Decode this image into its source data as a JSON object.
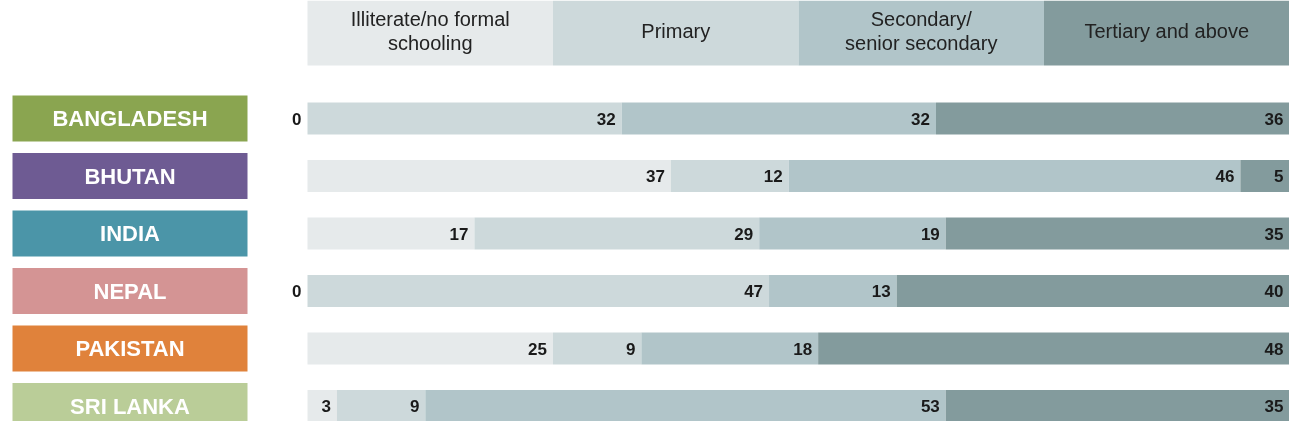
{
  "chart_data": {
    "type": "bar",
    "orientation": "horizontal",
    "stacked": true,
    "legend": "top",
    "grid": false,
    "tick_labels": false,
    "xlim": [
      0,
      100
    ],
    "categories": [
      "BANGLADESH",
      "BHUTAN",
      "INDIA",
      "NEPAL",
      "PAKISTAN",
      "SRI LANKA"
    ],
    "series": [
      {
        "name": "Illiterate/no formal\nschooling",
        "color": "#e6eaeb",
        "values": [
          0,
          37,
          17,
          0,
          25,
          3
        ],
        "value_labels": [
          null,
          "37",
          "17",
          null,
          "25",
          "3"
        ]
      },
      {
        "name": "Primary",
        "color": "#cdd9db",
        "values": [
          32,
          12,
          29,
          47,
          9,
          9
        ],
        "value_labels": [
          "32",
          "12",
          "29",
          "47",
          "9",
          "9"
        ]
      },
      {
        "name": "Secondary/\nsenior secondary",
        "color": "#b1c5c9",
        "values": [
          32,
          46,
          19,
          13,
          18,
          53
        ],
        "value_labels": [
          "32",
          "46",
          "19",
          "13",
          "18",
          "53"
        ]
      },
      {
        "name": "Tertiary and above",
        "color": "#839b9d",
        "values": [
          36,
          5,
          35,
          40,
          48,
          35
        ],
        "value_labels": [
          "36",
          "5",
          "35",
          "40",
          "48",
          "35"
        ]
      }
    ],
    "annotations": [
      {
        "text": "0",
        "x": 0,
        "y": "BANGLADESH"
      },
      {
        "text": "0",
        "x": 0,
        "y": "NEPAL"
      }
    ]
  }
}
